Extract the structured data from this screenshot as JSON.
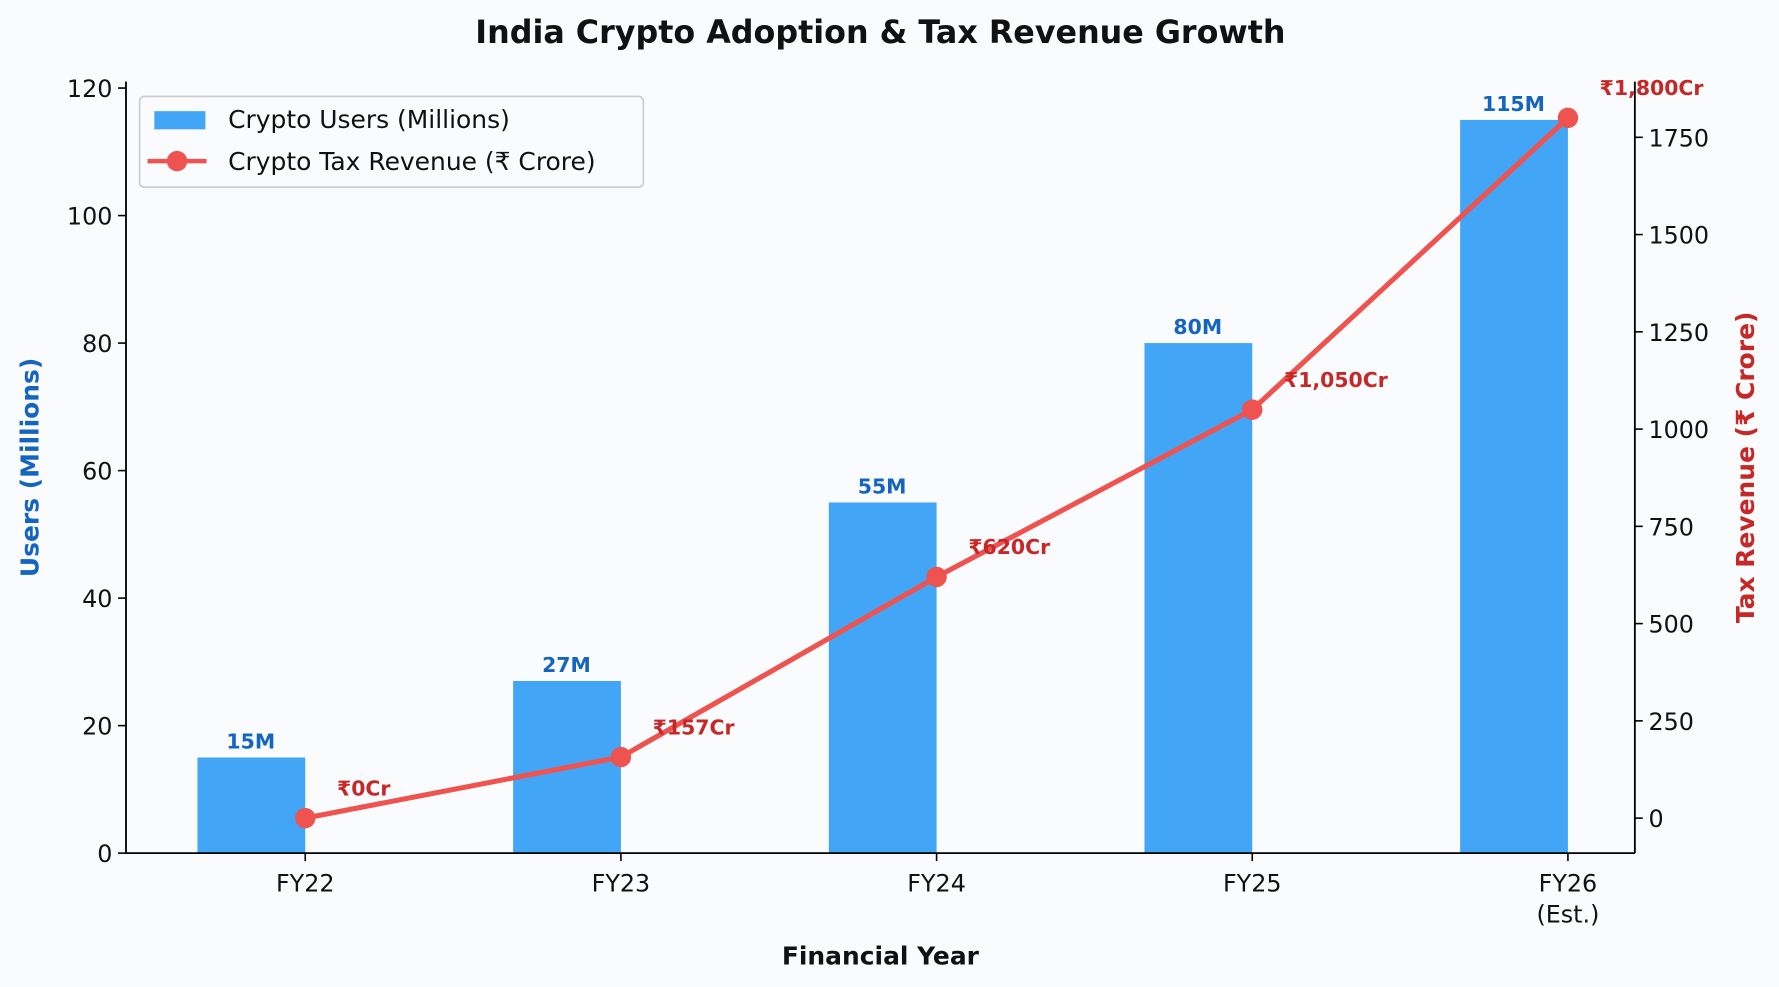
{
  "chart_data": {
    "type": "bar+line",
    "title": "India Crypto Adoption & Tax Revenue Growth",
    "xlabel": "Financial Year",
    "ylabel": "Users (Millions)",
    "y2label": "Tax Revenue (₹ Crore)",
    "categories": [
      "FY22",
      "FY23",
      "FY24",
      "FY25",
      "FY26\n(Est.)"
    ],
    "category_lines": [
      [
        "FY22"
      ],
      [
        "FY23"
      ],
      [
        "FY24"
      ],
      [
        "FY25"
      ],
      [
        "FY26",
        "(Est.)"
      ]
    ],
    "ylim": [
      0,
      121
    ],
    "y2lim": [
      -90,
      1893
    ],
    "yticks": [
      0,
      20,
      40,
      60,
      80,
      100,
      120
    ],
    "y2ticks": [
      0,
      250,
      500,
      750,
      1000,
      1250,
      1500,
      1750
    ],
    "series": [
      {
        "name": "Crypto Users (Millions)",
        "type": "bar",
        "axis": "left",
        "color": "#42a5f5",
        "label_color": "#1565c0",
        "values": [
          15,
          27,
          55,
          80,
          115
        ],
        "labels": [
          "15M",
          "27M",
          "55M",
          "80M",
          "115M"
        ]
      },
      {
        "name": "Crypto Tax Revenue (₹ Crore)",
        "type": "line",
        "axis": "right",
        "color": "#ef5350",
        "label_color": "#c62828",
        "values": [
          0,
          157,
          620,
          1050,
          1800
        ],
        "labels": [
          "₹0Cr",
          "₹157Cr",
          "₹620Cr",
          "₹1,050Cr",
          "₹1,800Cr"
        ]
      }
    ],
    "legend": "top-left",
    "grid": false
  }
}
